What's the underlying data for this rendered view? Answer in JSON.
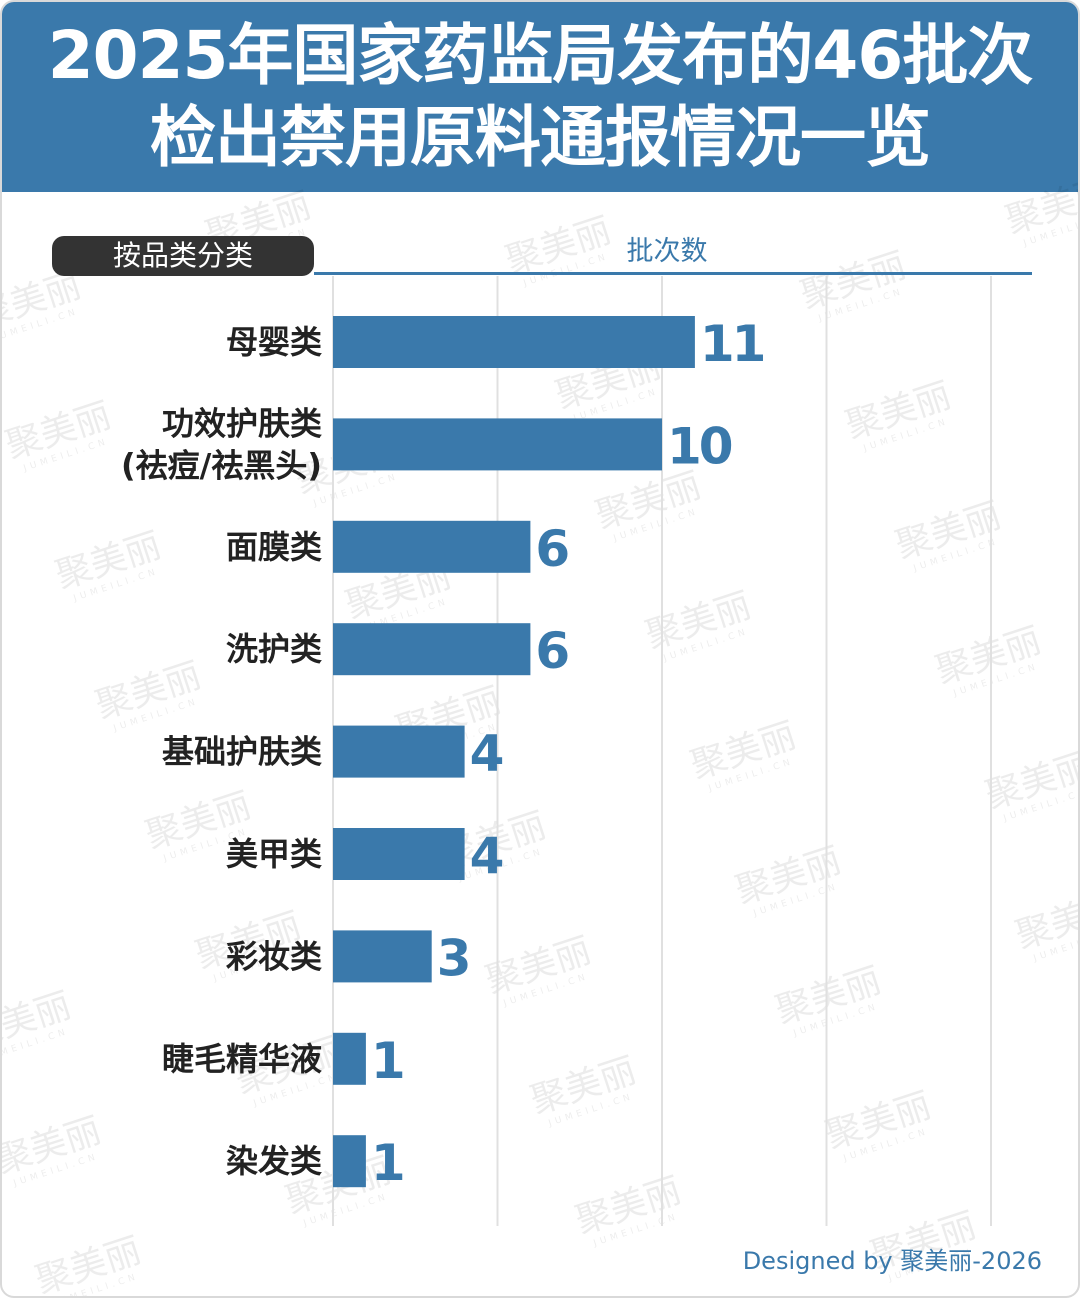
{
  "header": {
    "title_line1": "2025年国家药监局发布的46批次",
    "title_line2": "检出禁用原料通报情况一览"
  },
  "chart_data": {
    "type": "bar",
    "orientation": "horizontal",
    "category_header": "按品类分类",
    "xlabel": "批次数",
    "categories": [
      [
        "母婴类"
      ],
      [
        "功效护肤类",
        "(祛痘/祛黑头)"
      ],
      [
        "面膜类"
      ],
      [
        "洗护类"
      ],
      [
        "基础护肤类"
      ],
      [
        "美甲类"
      ],
      [
        "彩妆类"
      ],
      [
        "睫毛精华液"
      ],
      [
        "染发类"
      ]
    ],
    "values": [
      11,
      10,
      6,
      6,
      4,
      4,
      3,
      1,
      1
    ],
    "xlim": [
      0,
      20
    ],
    "grid": true,
    "colors": {
      "bar": "#3a79ab",
      "label": "#3a79ab",
      "header_bg": "#3a79ab",
      "category_header_bg": "#333333",
      "gridline": "#e0e0e0"
    }
  },
  "footer": {
    "credit": "Designed by 聚美丽-2026"
  },
  "watermark": {
    "text": "聚美丽",
    "subtext": "JUMEILI.CN"
  }
}
